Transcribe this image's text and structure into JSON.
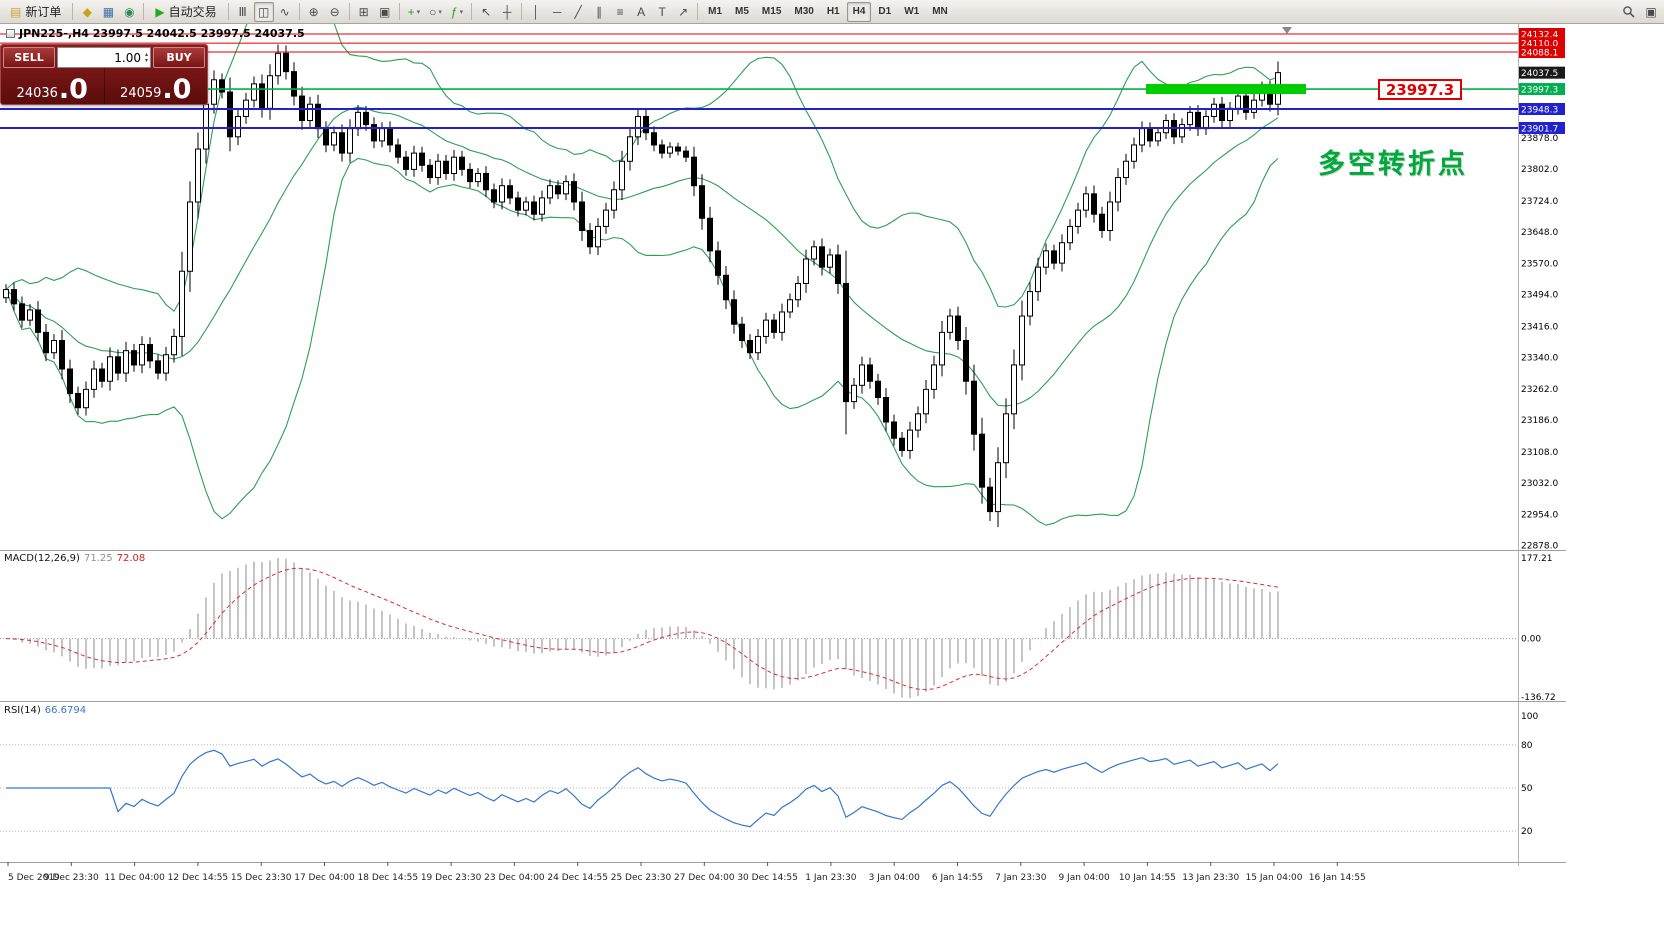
{
  "colors": {
    "red_level": "#dd0000",
    "green_level": "#00b050",
    "blue_level": "#2222cc",
    "current_tag": "#1a1a1a",
    "bollinger": "#2e9e57",
    "macd_hist": "#c4c4c4",
    "macd_signal": "#d83030",
    "rsi_line": "#3377cc",
    "highlight_bar": "#00cc00",
    "divider": "#a0a0a0"
  },
  "toolbar": {
    "groups": [
      {
        "items": [
          {
            "name": "new-order-button",
            "type": "labeled",
            "glyph": "▤",
            "glyph_color": "#caa33c",
            "label": "新订单"
          }
        ]
      },
      {
        "items": [
          {
            "name": "market-watch-icon",
            "glyph": "◆",
            "color": "#c8a415"
          },
          {
            "name": "navigator-icon",
            "glyph": "▦",
            "color": "#3a6ea5"
          },
          {
            "name": "community-icon",
            "glyph": "◉",
            "color": "#2e8b57"
          }
        ]
      },
      {
        "items": [
          {
            "name": "autotrading-button",
            "type": "labeled",
            "glyph": "▶",
            "glyph_color": "#22aa22",
            "label": "自动交易"
          }
        ]
      },
      {
        "items": [
          {
            "name": "bar-chart-icon",
            "glyph": "Ⅲ"
          },
          {
            "name": "candlestick-chart-icon",
            "glyph": "◫",
            "active": true
          },
          {
            "name": "line-chart-icon",
            "glyph": "∿"
          }
        ]
      },
      {
        "items": [
          {
            "name": "zoom-in-icon",
            "glyph": "⊕"
          },
          {
            "name": "zoom-out-icon",
            "glyph": "⊖"
          }
        ]
      },
      {
        "items": [
          {
            "name": "tile-windows-icon",
            "glyph": "⊞"
          },
          {
            "name": "cascade-windows-icon",
            "glyph": "▣"
          }
        ]
      },
      {
        "items": [
          {
            "name": "new-chart-icon",
            "glyph": "+",
            "color": "#1fa51f",
            "caret": true
          },
          {
            "name": "profiles-icon",
            "glyph": "○",
            "caret": true
          },
          {
            "name": "indicators-icon",
            "glyph": "ƒ",
            "color": "#1fa51f",
            "caret": true
          }
        ]
      },
      {
        "items": [
          {
            "name": "cursor-icon",
            "glyph": "↖"
          },
          {
            "name": "crosshair-icon",
            "glyph": "┼"
          }
        ]
      },
      {
        "items": [
          {
            "name": "vertical-line-icon",
            "glyph": "│"
          },
          {
            "name": "horizontal-line-icon",
            "glyph": "─"
          },
          {
            "name": "trendline-icon",
            "glyph": "╱"
          },
          {
            "name": "channel-icon",
            "glyph": "∥"
          },
          {
            "name": "fibonacci-icon",
            "glyph": "≡"
          },
          {
            "name": "text-icon",
            "glyph": "A"
          },
          {
            "name": "label-icon",
            "glyph": "T"
          },
          {
            "name": "arrows-icon",
            "glyph": "↗"
          }
        ]
      }
    ],
    "timeframes": [
      "M1",
      "M5",
      "M15",
      "M30",
      "H1",
      "H4",
      "D1",
      "W1",
      "MN"
    ],
    "active_timeframe": "H4",
    "right_items": [
      {
        "name": "search-icon",
        "icon": "magnifier"
      },
      {
        "name": "metaquotes-icon",
        "glyph": "▣"
      }
    ]
  },
  "chart": {
    "symbol_line": "JPN225-,H4  23997.5 24042.5 23997.5 24037.5",
    "trade_panel": {
      "sell_label": "SELL",
      "buy_label": "BUY",
      "volume": "1.00",
      "sell_price_small": "24036",
      "sell_price_big": ".0",
      "buy_price_small": "24059",
      "buy_price_big": ".0"
    },
    "annotation": "多空转折点",
    "price_label_box": "23997.3",
    "axis_prices": [
      {
        "t": "24132.4",
        "tag": "red"
      },
      {
        "t": "24110.0",
        "tag": "red"
      },
      {
        "t": "24088.1",
        "tag": "red"
      },
      {
        "t": "24037.5",
        "tag": "black"
      },
      {
        "t": "23997.3",
        "tag": "green"
      },
      {
        "t": "23948.3",
        "tag": "blue"
      },
      {
        "t": "23901.7",
        "tag": "blue"
      },
      {
        "t": "23878.0"
      },
      {
        "t": "23802.0"
      },
      {
        "t": "23724.0"
      },
      {
        "t": "23648.0"
      },
      {
        "t": "23570.0"
      },
      {
        "t": "23494.0"
      },
      {
        "t": "23416.0"
      },
      {
        "t": "23340.0"
      },
      {
        "t": "23262.0"
      },
      {
        "t": "23186.0"
      },
      {
        "t": "23108.0"
      },
      {
        "t": "23032.0"
      },
      {
        "t": "22954.0"
      },
      {
        "t": "22878.0"
      }
    ],
    "time_labels": [
      "5 Dec 2019",
      "9 Dec 23:30",
      "11 Dec 04:00",
      "12 Dec 14:55",
      "15 Dec 23:30",
      "17 Dec 04:00",
      "18 Dec 14:55",
      "19 Dec 23:30",
      "23 Dec 04:00",
      "24 Dec 14:55",
      "25 Dec 23:30",
      "27 Dec 04:00",
      "30 Dec 14:55",
      "1 Jan 23:30",
      "3 Jan 04:00",
      "6 Jan 14:55",
      "7 Jan 23:30",
      "9 Jan 04:00",
      "10 Jan 14:55",
      "13 Jan 23:30",
      "15 Jan 04:00",
      "16 Jan 14:55"
    ]
  },
  "macd": {
    "label": "MACD(12,26,9)",
    "value1": "71.25",
    "value2": "72.08",
    "axis": {
      "max": "177.21",
      "zero": "0.00",
      "min": "-136.72"
    }
  },
  "rsi": {
    "label": "RSI(14)",
    "value": "66.6794",
    "scale_top": "100",
    "levels": [
      "80",
      "50",
      "20"
    ]
  },
  "chart_data": {
    "type": "candlestick",
    "symbol": "JPN225-",
    "timeframe": "H4",
    "title": "JPN225- H4 with Bollinger Bands, MACD(12,26,9), RSI(14)",
    "price_axis_top": 24132.4,
    "price_axis_bottom": 22878.0,
    "current_ohlc": {
      "open": 23997.5,
      "high": 24042.5,
      "low": 23997.5,
      "close": 24037.5
    },
    "levels": {
      "red": [
        24132.4,
        24110.0,
        24088.1
      ],
      "green": [
        23997.3
      ],
      "blue": [
        23948.3,
        23901.7
      ],
      "current": 24037.5
    },
    "indicators": [
      "Bollinger Bands(20,2)",
      "MACD(12,26,9)=71.25/72.08",
      "RSI(14)=66.6794"
    ],
    "closes": [
      23505,
      23470,
      23430,
      23455,
      23400,
      23350,
      23380,
      23310,
      23250,
      23215,
      23260,
      23310,
      23280,
      23340,
      23300,
      23355,
      23320,
      23370,
      23330,
      23300,
      23345,
      23390,
      23550,
      23720,
      23850,
      23960,
      24020,
      23990,
      23880,
      23930,
      23970,
      24010,
      23950,
      24030,
      24085,
      24040,
      23980,
      23920,
      23960,
      23900,
      23860,
      23890,
      23840,
      23900,
      23940,
      23910,
      23870,
      23900,
      23860,
      23830,
      23800,
      23840,
      23810,
      23780,
      23820,
      23790,
      23830,
      23800,
      23770,
      23790,
      23750,
      23720,
      23760,
      23730,
      23700,
      23720,
      23690,
      23730,
      23760,
      23740,
      23770,
      23720,
      23650,
      23610,
      23660,
      23700,
      23750,
      23820,
      23880,
      23930,
      23890,
      23860,
      23840,
      23855,
      23845,
      23830,
      23760,
      23680,
      23600,
      23540,
      23480,
      23420,
      23380,
      23350,
      23390,
      23430,
      23400,
      23450,
      23480,
      23520,
      23580,
      23610,
      23560,
      23590,
      23520,
      23230,
      23270,
      23320,
      23280,
      23240,
      23180,
      23140,
      23110,
      23160,
      23200,
      23260,
      23320,
      23400,
      23440,
      23380,
      23280,
      23150,
      23020,
      22960,
      23080,
      23200,
      23320,
      23440,
      23500,
      23560,
      23600,
      23570,
      23620,
      23660,
      23700,
      23740,
      23690,
      23650,
      23720,
      23780,
      23820,
      23860,
      23900,
      23870,
      23890,
      23920,
      23880,
      23910,
      23940,
      23900,
      23930,
      23960,
      23920,
      23950,
      23980,
      23940,
      23970,
      24000,
      23960,
      24037.5
    ]
  }
}
